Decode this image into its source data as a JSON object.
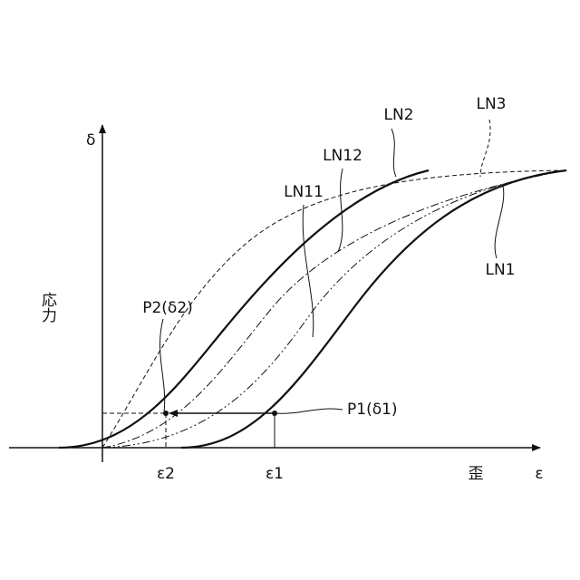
{
  "axes": {
    "y_symbol": "δ",
    "y_name": "応力",
    "x_symbol": "ε",
    "x_name": "歪"
  },
  "curves": [
    {
      "label": "LN2"
    },
    {
      "label": "LN3"
    },
    {
      "label": "LN12"
    },
    {
      "label": "LN11"
    },
    {
      "label": "LN1"
    }
  ],
  "points": [
    {
      "label": "P2(δ2)",
      "strain_label": "ε2"
    },
    {
      "label": "P1(δ1)",
      "strain_label": "ε1"
    }
  ]
}
